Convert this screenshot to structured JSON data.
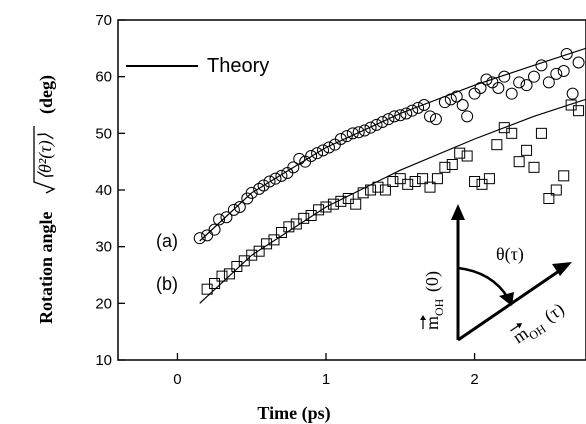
{
  "chart_data": {
    "type": "scatter",
    "xlabel": "Time (ps)",
    "ylabel_prefix": "Rotation angle",
    "ylabel_expr": "⟨θ²(τ)⟩",
    "ylabel_unit": "(deg)",
    "xlim": [
      -0.4,
      2.75
    ],
    "ylim": [
      10,
      70
    ],
    "xticks": [
      0,
      1,
      2
    ],
    "yticks": [
      10,
      20,
      30,
      40,
      50,
      60,
      70
    ],
    "legend": {
      "position": "top-left",
      "entries": [
        {
          "label": "Theory",
          "style": "line"
        }
      ]
    },
    "series": [
      {
        "label": "(a)",
        "marker": "circle",
        "points": [
          [
            0.15,
            31.5
          ],
          [
            0.2,
            32
          ],
          [
            0.25,
            33
          ],
          [
            0.28,
            34.8
          ],
          [
            0.33,
            35.2
          ],
          [
            0.38,
            36.5
          ],
          [
            0.42,
            37
          ],
          [
            0.47,
            38.5
          ],
          [
            0.5,
            39.5
          ],
          [
            0.55,
            40.2
          ],
          [
            0.58,
            40.8
          ],
          [
            0.62,
            41.5
          ],
          [
            0.66,
            42
          ],
          [
            0.7,
            42.5
          ],
          [
            0.74,
            43
          ],
          [
            0.78,
            44
          ],
          [
            0.82,
            45.5
          ],
          [
            0.86,
            45
          ],
          [
            0.9,
            46
          ],
          [
            0.94,
            46.5
          ],
          [
            0.98,
            47
          ],
          [
            1.02,
            47.5
          ],
          [
            1.06,
            48
          ],
          [
            1.1,
            49
          ],
          [
            1.14,
            49.5
          ],
          [
            1.18,
            50
          ],
          [
            1.22,
            50.2
          ],
          [
            1.26,
            50.5
          ],
          [
            1.3,
            51
          ],
          [
            1.34,
            51.5
          ],
          [
            1.38,
            52
          ],
          [
            1.42,
            52.5
          ],
          [
            1.46,
            53
          ],
          [
            1.5,
            53.2
          ],
          [
            1.54,
            53.5
          ],
          [
            1.58,
            54
          ],
          [
            1.62,
            54.5
          ],
          [
            1.66,
            55
          ],
          [
            1.7,
            53
          ],
          [
            1.74,
            52.5
          ],
          [
            1.8,
            55.5
          ],
          [
            1.84,
            56
          ],
          [
            1.88,
            56.5
          ],
          [
            1.92,
            55
          ],
          [
            1.95,
            53
          ],
          [
            2.0,
            57
          ],
          [
            2.04,
            58
          ],
          [
            2.08,
            59.5
          ],
          [
            2.12,
            59
          ],
          [
            2.16,
            58
          ],
          [
            2.2,
            60
          ],
          [
            2.25,
            57
          ],
          [
            2.3,
            59
          ],
          [
            2.35,
            58.5
          ],
          [
            2.4,
            60
          ],
          [
            2.45,
            62
          ],
          [
            2.5,
            59
          ],
          [
            2.55,
            60.5
          ],
          [
            2.6,
            61
          ],
          [
            2.62,
            64
          ],
          [
            2.66,
            57
          ],
          [
            2.7,
            62.5
          ],
          [
            2.74,
            58
          ]
        ]
      },
      {
        "label": "(b)",
        "marker": "square",
        "points": [
          [
            0.2,
            22.5
          ],
          [
            0.25,
            23.5
          ],
          [
            0.3,
            24.8
          ],
          [
            0.35,
            25.2
          ],
          [
            0.4,
            26.5
          ],
          [
            0.45,
            27.5
          ],
          [
            0.5,
            28.5
          ],
          [
            0.55,
            29.2
          ],
          [
            0.6,
            30.5
          ],
          [
            0.65,
            31.2
          ],
          [
            0.7,
            32.5
          ],
          [
            0.75,
            33.5
          ],
          [
            0.8,
            34
          ],
          [
            0.85,
            35
          ],
          [
            0.9,
            35.5
          ],
          [
            0.95,
            36.5
          ],
          [
            1.0,
            37
          ],
          [
            1.05,
            37.5
          ],
          [
            1.1,
            38
          ],
          [
            1.15,
            38.5
          ],
          [
            1.2,
            37.5
          ],
          [
            1.25,
            39.5
          ],
          [
            1.3,
            40
          ],
          [
            1.35,
            40.5
          ],
          [
            1.4,
            40
          ],
          [
            1.45,
            41.5
          ],
          [
            1.5,
            42
          ],
          [
            1.55,
            41
          ],
          [
            1.6,
            41.5
          ],
          [
            1.65,
            42
          ],
          [
            1.7,
            40.5
          ],
          [
            1.75,
            42
          ],
          [
            1.8,
            44
          ],
          [
            1.85,
            44.5
          ],
          [
            1.9,
            46.5
          ],
          [
            1.95,
            46
          ],
          [
            2.0,
            41.5
          ],
          [
            2.05,
            41
          ],
          [
            2.1,
            42
          ],
          [
            2.15,
            48
          ],
          [
            2.2,
            51
          ],
          [
            2.25,
            50
          ],
          [
            2.3,
            45
          ],
          [
            2.35,
            47
          ],
          [
            2.4,
            44
          ],
          [
            2.45,
            50
          ],
          [
            2.5,
            38.5
          ],
          [
            2.55,
            40
          ],
          [
            2.6,
            42.5
          ],
          [
            2.65,
            55
          ],
          [
            2.7,
            54
          ],
          [
            2.75,
            45
          ]
        ]
      }
    ],
    "theory_curves": [
      {
        "x": [
          0.15,
          0.5,
          1.0,
          1.5,
          2.0,
          2.4,
          2.75
        ],
        "y": [
          31,
          39.5,
          47.5,
          53.5,
          58.5,
          62,
          65
        ]
      },
      {
        "x": [
          0.15,
          0.5,
          1.0,
          1.5,
          2.0,
          2.4,
          2.75
        ],
        "y": [
          20,
          28.5,
          37,
          43.5,
          49,
          53,
          56
        ]
      }
    ]
  },
  "inset": {
    "angle_label": "θ(τ)",
    "vector_a": "m",
    "vector_a_sub": "OH",
    "vector_a_arg": "(0)",
    "vector_b": "m",
    "vector_b_sub": "OH",
    "vector_b_arg": "(τ)"
  }
}
